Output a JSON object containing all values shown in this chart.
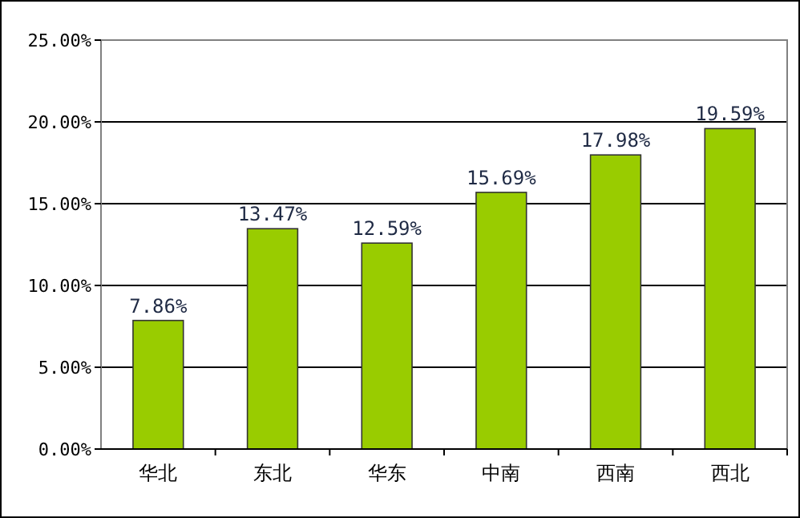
{
  "chart_data": {
    "type": "bar",
    "categories": [
      "华北",
      "东北",
      "华东",
      "中南",
      "西南",
      "西北"
    ],
    "values": [
      7.86,
      13.47,
      12.59,
      15.69,
      17.98,
      19.59
    ],
    "value_labels": [
      "7.86%",
      "13.47%",
      "12.59%",
      "15.69%",
      "17.98%",
      "19.59%"
    ],
    "color": "#99cc00",
    "ylim": [
      0,
      25
    ],
    "yticks": [
      {
        "value": 0,
        "label": "0.00%"
      },
      {
        "value": 5,
        "label": "5.00%"
      },
      {
        "value": 10,
        "label": "10.00%"
      },
      {
        "value": 15,
        "label": "15.00%"
      },
      {
        "value": 20,
        "label": "20.00%"
      },
      {
        "value": 25,
        "label": "25.00%"
      }
    ],
    "grid": "y"
  }
}
